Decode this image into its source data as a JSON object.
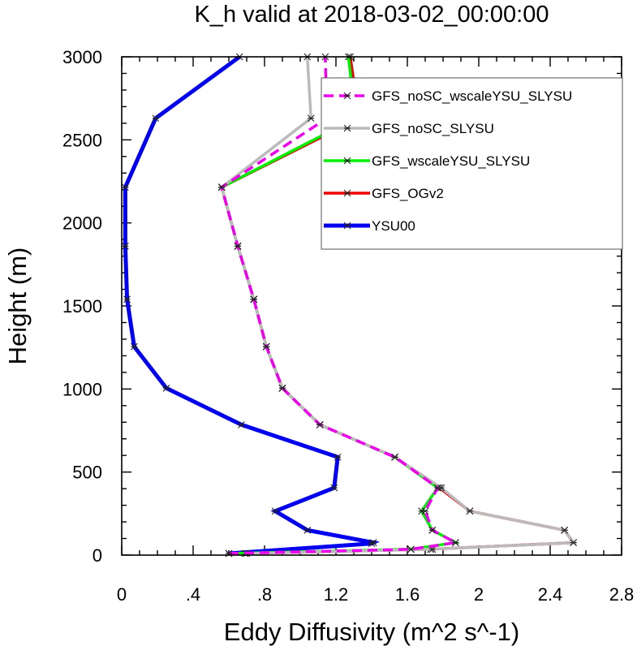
{
  "chart_data": {
    "type": "line",
    "title": "K_h valid at 2018-03-02_00:00:00",
    "xlabel": "Eddy Diffusivity (m^2 s^-1)",
    "ylabel": "Height (m)",
    "xlim": [
      0,
      2.8
    ],
    "ylim": [
      0,
      3000
    ],
    "xticks": [
      0,
      0.4,
      0.8,
      1.2,
      1.6,
      2.0,
      2.4,
      2.8
    ],
    "xtick_labels": [
      "0",
      ".4",
      ".8",
      "1.2",
      "1.6",
      "2",
      "2.4",
      "2.8"
    ],
    "yticks": [
      0,
      500,
      1000,
      1500,
      2000,
      2500,
      3000
    ],
    "ytick_labels": [
      "0",
      "500",
      "1000",
      "1500",
      "2000",
      "2500",
      "3000"
    ],
    "grid": false,
    "legend_position": "top-right",
    "series": [
      {
        "name": "YSU00",
        "color": "#0000ee",
        "dashed": false,
        "points": [
          [
            0.6,
            10
          ],
          [
            1.4,
            70
          ],
          [
            1.41,
            75
          ],
          [
            1.04,
            150
          ],
          [
            0.86,
            265
          ],
          [
            1.19,
            405
          ],
          [
            1.21,
            590
          ],
          [
            0.67,
            785
          ],
          [
            0.25,
            1005
          ],
          [
            0.07,
            1255
          ],
          [
            0.03,
            1540
          ],
          [
            0.02,
            1860
          ],
          [
            0.02,
            2215
          ],
          [
            0.19,
            2630
          ],
          [
            0.66,
            3000
          ]
        ]
      },
      {
        "name": "GFS_OGv2",
        "color": "#ee0000",
        "dashed": false,
        "points": [
          [
            0.69,
            10
          ],
          [
            1.73,
            35
          ],
          [
            2.53,
            75
          ],
          [
            2.48,
            150
          ],
          [
            1.95,
            265
          ],
          [
            1.78,
            405
          ],
          [
            1.53,
            590
          ],
          [
            1.11,
            785
          ],
          [
            0.9,
            1005
          ],
          [
            0.81,
            1255
          ],
          [
            0.74,
            1540
          ],
          [
            0.65,
            1860
          ],
          [
            0.56,
            2215
          ],
          [
            1.33,
            2630
          ],
          [
            1.28,
            3000
          ]
        ]
      },
      {
        "name": "GFS_wscaleYSU_SLYSU",
        "color": "#00ee00",
        "dashed": false,
        "points": [
          [
            0.6,
            10
          ],
          [
            1.62,
            35
          ],
          [
            1.87,
            75
          ],
          [
            1.74,
            150
          ],
          [
            1.68,
            265
          ],
          [
            1.77,
            405
          ],
          [
            1.53,
            590
          ],
          [
            1.11,
            785
          ],
          [
            0.9,
            1005
          ],
          [
            0.81,
            1255
          ],
          [
            0.74,
            1540
          ],
          [
            0.65,
            1860
          ],
          [
            0.56,
            2215
          ],
          [
            1.31,
            2630
          ],
          [
            1.27,
            3000
          ]
        ]
      },
      {
        "name": "GFS_noSC_SLYSU",
        "color": "#bbbbbb",
        "dashed": false,
        "points": [
          [
            0.7,
            10
          ],
          [
            1.74,
            35
          ],
          [
            2.53,
            75
          ],
          [
            2.48,
            150
          ],
          [
            1.95,
            265
          ],
          [
            1.79,
            405
          ],
          [
            1.53,
            590
          ],
          [
            1.11,
            785
          ],
          [
            0.9,
            1005
          ],
          [
            0.81,
            1255
          ],
          [
            0.74,
            1540
          ],
          [
            0.65,
            1860
          ],
          [
            0.56,
            2215
          ],
          [
            1.06,
            2630
          ],
          [
            1.04,
            3000
          ]
        ]
      },
      {
        "name": "GFS_noSC_wscaleYSU_SLYSU",
        "color": "#ee00ee",
        "dashed": true,
        "points": [
          [
            0.6,
            10
          ],
          [
            1.62,
            35
          ],
          [
            1.87,
            75
          ],
          [
            1.74,
            150
          ],
          [
            1.7,
            265
          ],
          [
            1.77,
            405
          ],
          [
            1.53,
            590
          ],
          [
            1.11,
            785
          ],
          [
            0.9,
            1005
          ],
          [
            0.81,
            1255
          ],
          [
            0.74,
            1540
          ],
          [
            0.65,
            1860
          ],
          [
            0.56,
            2215
          ],
          [
            1.15,
            2630
          ],
          [
            1.14,
            3000
          ]
        ]
      }
    ],
    "legend_order": [
      "GFS_noSC_wscaleYSU_SLYSU",
      "GFS_noSC_SLYSU",
      "GFS_wscaleYSU_SLYSU",
      "GFS_OGv2",
      "YSU00"
    ]
  }
}
